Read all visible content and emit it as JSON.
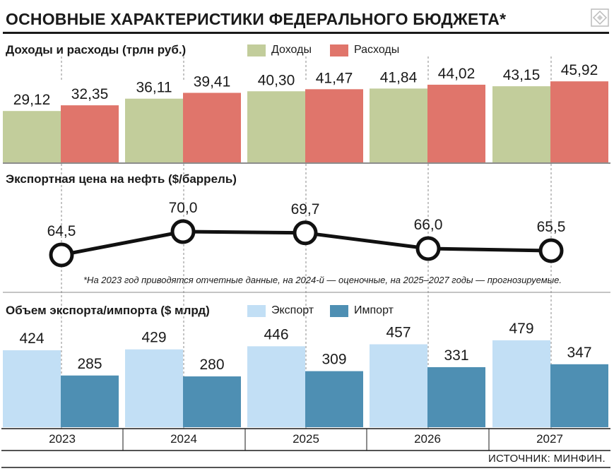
{
  "title": "ОСНОВНЫЕ ХАРАКТЕРИСТИКИ ФЕДЕРАЛЬНОГО БЮДЖЕТА*",
  "footnote": "*На 2023 год приводятся отчетные данные, на 2024-й — оценочные, на 2025–2027 годы — прогнозируемые.",
  "source": "ИСТОЧНИК: МИНФИН.",
  "years": [
    "2023",
    "2024",
    "2025",
    "2026",
    "2027"
  ],
  "colors": {
    "income": "#c2cd9b",
    "expense": "#e0756b",
    "export": "#c2dff5",
    "import": "#4e8fb3",
    "line": "#111111",
    "grid": "#888888"
  },
  "chart_data": [
    {
      "type": "bar",
      "title": "Доходы и расходы (трлн руб.)",
      "categories": [
        "2023",
        "2024",
        "2025",
        "2026",
        "2027"
      ],
      "series": [
        {
          "name": "Доходы",
          "values": [
            29.12,
            36.11,
            40.3,
            41.84,
            43.15
          ],
          "labels": [
            "29,12",
            "36,11",
            "40,30",
            "41,84",
            "43,15"
          ]
        },
        {
          "name": "Расходы",
          "values": [
            32.35,
            39.41,
            41.47,
            44.02,
            45.92
          ],
          "labels": [
            "32,35",
            "39,41",
            "41,47",
            "44,02",
            "45,92"
          ]
        }
      ]
    },
    {
      "type": "line",
      "title": "Экспортная цена на нефть ($/баррель)",
      "categories": [
        "2023",
        "2024",
        "2025",
        "2026",
        "2027"
      ],
      "series": [
        {
          "values": [
            64.5,
            70.0,
            69.7,
            66.0,
            65.5
          ],
          "labels": [
            "64,5",
            "70,0",
            "69,7",
            "66,0",
            "65,5"
          ]
        }
      ]
    },
    {
      "type": "bar",
      "title": "Объем экспорта/импорта ($ млрд)",
      "categories": [
        "2023",
        "2024",
        "2025",
        "2026",
        "2027"
      ],
      "series": [
        {
          "name": "Экспорт",
          "values": [
            424,
            429,
            446,
            457,
            479
          ],
          "labels": [
            "424",
            "429",
            "446",
            "457",
            "479"
          ]
        },
        {
          "name": "Импорт",
          "values": [
            285,
            280,
            309,
            331,
            347
          ],
          "labels": [
            "285",
            "280",
            "309",
            "331",
            "347"
          ]
        }
      ]
    }
  ]
}
